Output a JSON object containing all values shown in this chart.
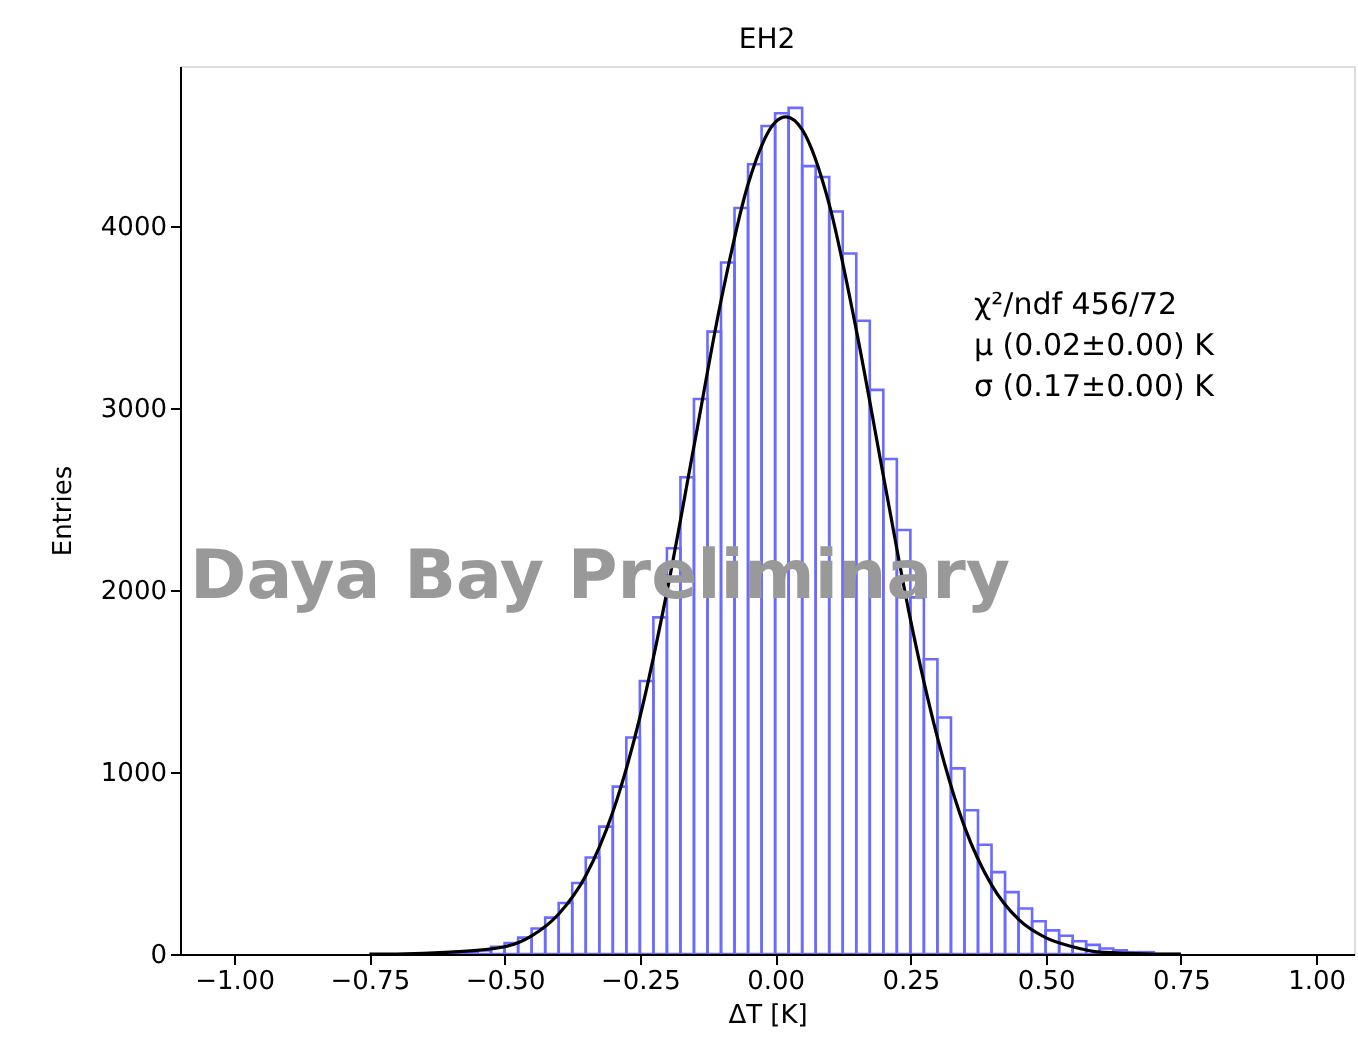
{
  "chart_data": {
    "type": "histogram",
    "title": "EH2",
    "xlabel": "ΔT [K]",
    "ylabel": "Entries",
    "xlim": [
      -1.1,
      1.07
    ],
    "ylim": [
      0,
      4880
    ],
    "xticks": [
      {
        "value": -1,
        "label": "−1.00"
      },
      {
        "value": -0.75,
        "label": "−0.75"
      },
      {
        "value": -0.5,
        "label": "−0.50"
      },
      {
        "value": -0.25,
        "label": "−0.25"
      },
      {
        "value": 0,
        "label": "0.00"
      },
      {
        "value": 0.25,
        "label": "0.25"
      },
      {
        "value": 0.5,
        "label": "0.50"
      },
      {
        "value": 0.75,
        "label": "0.75"
      },
      {
        "value": 1,
        "label": "1.00"
      }
    ],
    "yticks": [
      0,
      1000,
      2000,
      3000,
      4000
    ],
    "grid": false,
    "legend": false,
    "marker": "none",
    "line_style": "solid",
    "series": [
      {
        "type": "histogram",
        "color": "#6b6bff",
        "bins": [
          -0.6,
          -0.575,
          -0.55,
          -0.525,
          -0.5,
          -0.475,
          -0.45,
          -0.425,
          -0.4,
          -0.375,
          -0.35,
          -0.325,
          -0.3,
          -0.275,
          -0.25,
          -0.225,
          -0.2,
          -0.175,
          -0.15,
          -0.125,
          -0.1,
          -0.075,
          -0.05,
          -0.025,
          0,
          0.025,
          0.05,
          0.075,
          0.1,
          0.125,
          0.15,
          0.175,
          0.2,
          0.225,
          0.25,
          0.275,
          0.3,
          0.325,
          0.35,
          0.375,
          0.4,
          0.425,
          0.45,
          0.475,
          0.5,
          0.525,
          0.55,
          0.575,
          0.6,
          0.625,
          0.65,
          0.675,
          0.7,
          0.725,
          0.75
        ],
        "values": [
          10,
          10,
          20,
          40,
          60,
          90,
          140,
          200,
          280,
          390,
          530,
          700,
          920,
          1190,
          1500,
          1850,
          2230,
          2620,
          3050,
          3420,
          3800,
          4100,
          4340,
          4550,
          4620,
          4650,
          4330,
          4270,
          4080,
          3850,
          3480,
          3100,
          2720,
          2330,
          1960,
          1620,
          1300,
          1020,
          790,
          600,
          450,
          340,
          250,
          180,
          130,
          100,
          70,
          50,
          30,
          20,
          10,
          10,
          0,
          0
        ]
      },
      {
        "type": "line",
        "color": "#000000",
        "x": [
          -0.75,
          -0.7,
          -0.6,
          -0.5,
          -0.45,
          -0.4,
          -0.35,
          -0.3,
          -0.25,
          -0.2,
          -0.15,
          -0.1,
          -0.05,
          0,
          0.02,
          0.05,
          0.1,
          0.15,
          0.2,
          0.25,
          0.3,
          0.35,
          0.4,
          0.45,
          0.5,
          0.55,
          0.6,
          0.7,
          0.75
        ],
        "values": [
          0,
          0,
          10,
          40,
          100,
          220,
          430,
          780,
          1300,
          1990,
          2790,
          3590,
          4230,
          4570,
          4600,
          4530,
          4120,
          3430,
          2630,
          1840,
          1190,
          700,
          380,
          190,
          90,
          40,
          10,
          0,
          0
        ]
      }
    ],
    "annotations": [
      "χ²/ndf  456/72",
      "μ  (0.02±0.00) K",
      "σ  (0.17±0.00) K",
      "Daya Bay Preliminary"
    ]
  }
}
